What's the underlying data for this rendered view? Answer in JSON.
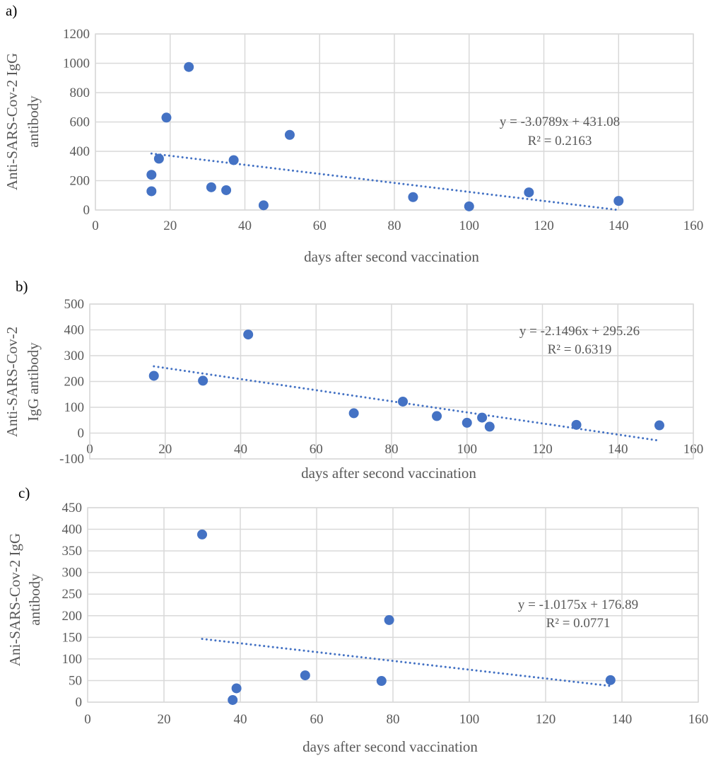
{
  "chart_data": [
    {
      "panel": "a)",
      "type": "scatter",
      "title": "",
      "xlabel": "days after second vaccination",
      "ylabel_lines": [
        "Anti-SARS-Cov-2 IgG",
        "antibody"
      ],
      "xlim": [
        0,
        160
      ],
      "ylim": [
        0,
        1200
      ],
      "xticks": [
        0,
        20,
        40,
        60,
        80,
        100,
        120,
        140,
        160
      ],
      "yticks": [
        0,
        200,
        400,
        600,
        800,
        1000,
        1200
      ],
      "grid": true,
      "marker_color": "#4472c4",
      "points": [
        {
          "x": 15,
          "y": 128
        },
        {
          "x": 15,
          "y": 240
        },
        {
          "x": 17,
          "y": 350
        },
        {
          "x": 19,
          "y": 630
        },
        {
          "x": 25,
          "y": 975
        },
        {
          "x": 31,
          "y": 155
        },
        {
          "x": 35,
          "y": 135
        },
        {
          "x": 37,
          "y": 340
        },
        {
          "x": 45,
          "y": 32
        },
        {
          "x": 52,
          "y": 512
        },
        {
          "x": 85,
          "y": 88
        },
        {
          "x": 100,
          "y": 25
        },
        {
          "x": 116,
          "y": 120
        },
        {
          "x": 140,
          "y": 62
        }
      ],
      "trendline": {
        "type": "linear",
        "slope": -3.0789,
        "intercept": 431.08,
        "x_range": [
          15,
          140
        ]
      },
      "equation": "y = -3.0789x + 431.08",
      "r_squared": "R² = 0.2163"
    },
    {
      "panel": "b)",
      "type": "scatter",
      "title": "",
      "xlabel": "days after second vaccination",
      "ylabel_lines": [
        "Anti-SARS-Cov-2",
        "IgG antibody"
      ],
      "xlim": [
        0,
        160
      ],
      "ylim": [
        -100,
        500
      ],
      "xticks": [
        0,
        20,
        40,
        60,
        80,
        100,
        120,
        140,
        160
      ],
      "yticks": [
        -100,
        0,
        100,
        200,
        300,
        400,
        500
      ],
      "grid": true,
      "marker_color": "#4472c4",
      "points": [
        {
          "x": 17,
          "y": 222
        },
        {
          "x": 30,
          "y": 203
        },
        {
          "x": 42,
          "y": 382
        },
        {
          "x": 70,
          "y": 77
        },
        {
          "x": 83,
          "y": 122
        },
        {
          "x": 92,
          "y": 66
        },
        {
          "x": 100,
          "y": 40
        },
        {
          "x": 104,
          "y": 60
        },
        {
          "x": 106,
          "y": 25
        },
        {
          "x": 129,
          "y": 32
        },
        {
          "x": 151,
          "y": 30
        }
      ],
      "trendline": {
        "type": "linear",
        "slope": -2.1496,
        "intercept": 295.26,
        "x_range": [
          17,
          151
        ]
      },
      "equation": "y = -2.1496x + 295.26",
      "r_squared": "R² = 0.6319"
    },
    {
      "panel": "c)",
      "type": "scatter",
      "title": "",
      "xlabel": "days after second vaccination",
      "ylabel_lines": [
        "Ani-SARS-Cov-2 IgG",
        "antibody"
      ],
      "xlim": [
        0,
        160
      ],
      "ylim": [
        0,
        450
      ],
      "xticks": [
        0,
        20,
        40,
        60,
        80,
        100,
        120,
        140,
        160
      ],
      "yticks": [
        0,
        50,
        100,
        150,
        200,
        250,
        300,
        350,
        400,
        450
      ],
      "grid": true,
      "marker_color": "#4472c4",
      "points": [
        {
          "x": 30,
          "y": 388
        },
        {
          "x": 38,
          "y": 5
        },
        {
          "x": 39,
          "y": 32
        },
        {
          "x": 57,
          "y": 62
        },
        {
          "x": 77,
          "y": 49
        },
        {
          "x": 79,
          "y": 190
        },
        {
          "x": 137,
          "y": 51
        }
      ],
      "trendline": {
        "type": "linear",
        "slope": -1.0175,
        "intercept": 176.89,
        "x_range": [
          30,
          137
        ]
      },
      "equation": "y = -1.0175x + 176.89",
      "r_squared": "R² = 0.0771"
    }
  ]
}
